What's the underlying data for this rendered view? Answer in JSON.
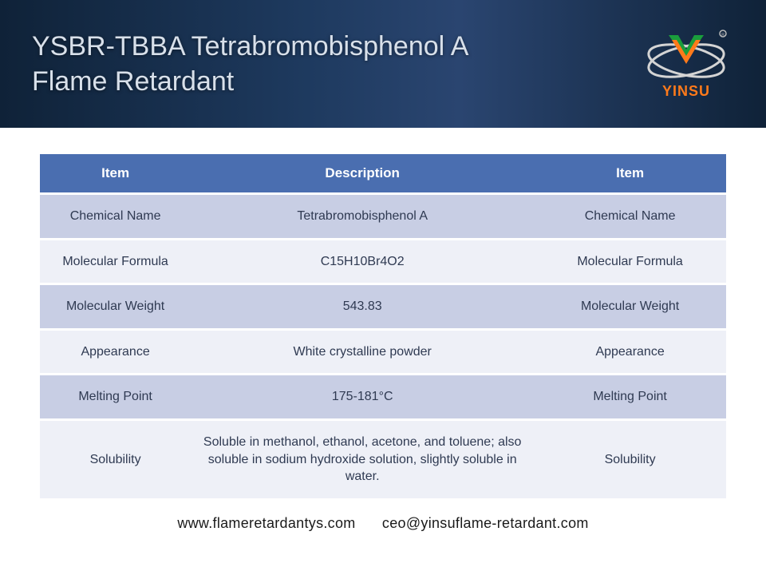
{
  "header": {
    "title": "YSBR-TBBA Tetrabromobisphenol A Flame Retardant",
    "logo_text": "YINSU",
    "logo_colors": {
      "green": "#1a9e3c",
      "orange": "#ff7a1a",
      "ring": "#d4d4d4"
    }
  },
  "table": {
    "header_bg": "#4a6eb0",
    "header_text": "#ffffff",
    "row_odd_bg": "#c8cee4",
    "row_even_bg": "#eef0f7",
    "cell_text": "#2f3a52",
    "columns": [
      "Item",
      "Description",
      "Item"
    ],
    "rows": [
      {
        "item": "Chemical Name",
        "desc": "Tetrabromobisphenol A",
        "item2": "Chemical Name"
      },
      {
        "item": "Molecular Formula",
        "desc": "C15H10Br4O2",
        "item2": "Molecular Formula"
      },
      {
        "item": "Molecular Weight",
        "desc": "543.83",
        "item2": "Molecular Weight"
      },
      {
        "item": "Appearance",
        "desc": "White crystalline powder",
        "item2": "Appearance"
      },
      {
        "item": "Melting Point",
        "desc": "175-181°C",
        "item2": "Melting Point"
      },
      {
        "item": "Solubility",
        "desc": "Soluble in methanol, ethanol, acetone, and toluene; also soluble in sodium hydroxide solution, slightly soluble in water.",
        "item2": "Solubility"
      }
    ]
  },
  "footer": {
    "website": "www.flameretardantys.com",
    "email": "ceo@yinsuflame-retardant.com"
  }
}
